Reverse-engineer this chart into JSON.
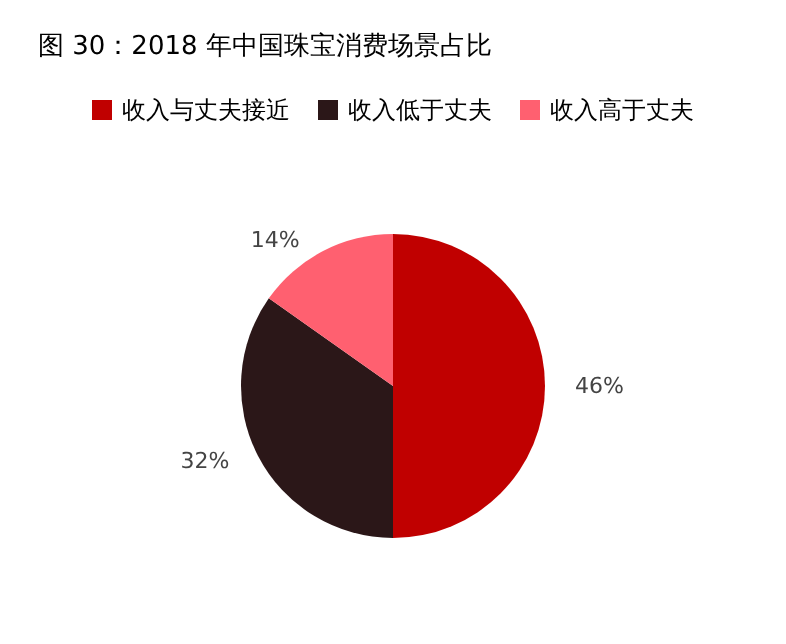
{
  "chart_data": {
    "type": "pie",
    "title": "图 30：2018 年中国珠宝消费场景占比",
    "categories": [
      "收入与丈夫接近",
      "收入低于丈夫",
      "收入高于丈夫"
    ],
    "values": [
      46,
      32,
      14
    ],
    "value_labels": [
      "46%",
      "32%",
      "14%"
    ],
    "colors": [
      "#c00000",
      "#2b1718",
      "#ff6070"
    ],
    "legend": "top"
  }
}
